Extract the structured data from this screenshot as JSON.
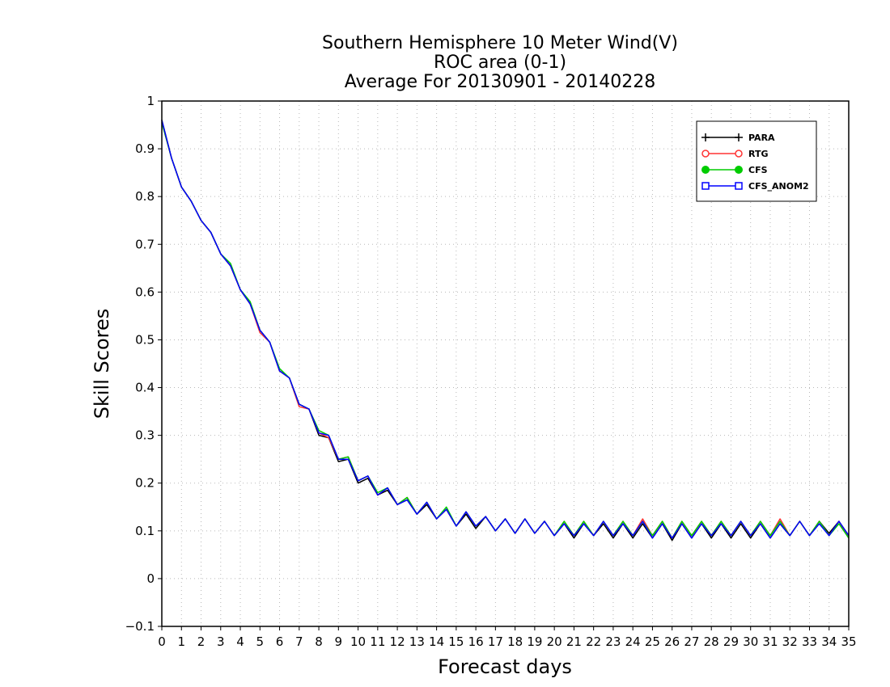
{
  "chart_data": {
    "type": "line",
    "title_lines": [
      "Southern Hemisphere 10 Meter Wind(V)",
      "ROC area (0-1)",
      "Average For 20130901 - 20140228"
    ],
    "xlabel": "Forecast days",
    "ylabel": "Skill Scores",
    "xlim": [
      0,
      35
    ],
    "ylim": [
      -0.1,
      1
    ],
    "x_ticks": [
      "0",
      "1",
      "2",
      "3",
      "4",
      "5",
      "6",
      "7",
      "8",
      "9",
      "10",
      "11",
      "12",
      "13",
      "14",
      "15",
      "16",
      "17",
      "18",
      "19",
      "20",
      "21",
      "22",
      "23",
      "24",
      "25",
      "26",
      "27",
      "28",
      "29",
      "30",
      "31",
      "32",
      "33",
      "34",
      "35"
    ],
    "y_ticks": [
      "−0.1",
      "0",
      "0.1",
      "0.2",
      "0.3",
      "0.4",
      "0.5",
      "0.6",
      "0.7",
      "0.8",
      "0.9",
      "1"
    ],
    "grid": true,
    "legend_position": "top-right",
    "x": [
      0,
      0.5,
      1,
      1.5,
      2,
      2.5,
      3,
      3.5,
      4,
      4.5,
      5,
      5.5,
      6,
      6.5,
      7,
      7.5,
      8,
      8.5,
      9,
      9.5,
      10,
      10.5,
      11,
      11.5,
      12,
      12.5,
      13,
      13.5,
      14,
      14.5,
      15,
      15.5,
      16,
      16.5,
      17,
      17.5,
      18,
      18.5,
      19,
      19.5,
      20,
      20.5,
      21,
      21.5,
      22,
      22.5,
      23,
      23.5,
      24,
      24.5,
      25,
      25.5,
      26,
      26.5,
      27,
      27.5,
      28,
      28.5,
      29,
      29.5,
      30,
      30.5,
      31,
      31.5,
      32,
      32.5,
      33,
      33.5,
      34,
      34.5,
      35
    ],
    "series": [
      {
        "name": "PARA",
        "color": "#000000",
        "marker": "plus",
        "values": [
          0.96,
          0.88,
          0.82,
          0.79,
          0.75,
          0.725,
          0.68,
          0.655,
          0.605,
          0.575,
          0.52,
          0.495,
          0.435,
          0.42,
          0.365,
          0.355,
          0.3,
          0.295,
          0.245,
          0.25,
          0.2,
          0.21,
          0.175,
          0.185,
          0.155,
          0.165,
          0.135,
          0.155,
          0.125,
          0.145,
          0.11,
          0.135,
          0.105,
          0.13,
          0.1,
          0.125,
          0.095,
          0.125,
          0.095,
          0.12,
          0.09,
          0.115,
          0.085,
          0.115,
          0.09,
          0.115,
          0.085,
          0.115,
          0.085,
          0.115,
          0.085,
          0.115,
          0.08,
          0.115,
          0.085,
          0.115,
          0.085,
          0.115,
          0.085,
          0.115,
          0.085,
          0.115,
          0.085,
          0.115,
          0.09,
          0.12,
          0.09,
          0.12,
          0.095,
          0.12,
          0.09
        ]
      },
      {
        "name": "RTG",
        "color": "#ff3333",
        "marker": "open-circle",
        "values": [
          0.955,
          0.88,
          0.82,
          0.79,
          0.75,
          0.725,
          0.68,
          0.655,
          0.605,
          0.575,
          0.515,
          0.495,
          0.435,
          0.42,
          0.36,
          0.355,
          0.305,
          0.295,
          0.25,
          0.255,
          0.205,
          0.215,
          0.175,
          0.19,
          0.155,
          0.17,
          0.135,
          0.16,
          0.125,
          0.145,
          0.11,
          0.14,
          0.11,
          0.13,
          0.1,
          0.125,
          0.095,
          0.125,
          0.095,
          0.12,
          0.09,
          0.12,
          0.09,
          0.12,
          0.09,
          0.12,
          0.09,
          0.12,
          0.09,
          0.125,
          0.09,
          0.12,
          0.085,
          0.12,
          0.09,
          0.12,
          0.09,
          0.12,
          0.09,
          0.12,
          0.09,
          0.12,
          0.09,
          0.125,
          0.09,
          0.12,
          0.09,
          0.12,
          0.09,
          0.12,
          0.085
        ]
      },
      {
        "name": "CFS",
        "color": "#00cc00",
        "marker": "filled-circle",
        "values": [
          0.955,
          0.88,
          0.82,
          0.79,
          0.75,
          0.725,
          0.68,
          0.66,
          0.605,
          0.58,
          0.52,
          0.495,
          0.44,
          0.42,
          0.365,
          0.355,
          0.31,
          0.3,
          0.25,
          0.255,
          0.205,
          0.215,
          0.18,
          0.19,
          0.155,
          0.17,
          0.135,
          0.16,
          0.125,
          0.15,
          0.11,
          0.14,
          0.11,
          0.13,
          0.1,
          0.125,
          0.095,
          0.125,
          0.095,
          0.12,
          0.09,
          0.12,
          0.09,
          0.12,
          0.09,
          0.12,
          0.09,
          0.12,
          0.09,
          0.12,
          0.09,
          0.12,
          0.085,
          0.12,
          0.09,
          0.12,
          0.09,
          0.12,
          0.09,
          0.12,
          0.09,
          0.12,
          0.09,
          0.12,
          0.09,
          0.12,
          0.09,
          0.12,
          0.09,
          0.115,
          0.085
        ]
      },
      {
        "name": "CFS_ANOM2",
        "color": "#0000ff",
        "marker": "open-square",
        "values": [
          0.96,
          0.88,
          0.82,
          0.79,
          0.75,
          0.725,
          0.68,
          0.655,
          0.605,
          0.575,
          0.52,
          0.495,
          0.435,
          0.42,
          0.365,
          0.355,
          0.305,
          0.3,
          0.25,
          0.25,
          0.205,
          0.215,
          0.175,
          0.19,
          0.155,
          0.165,
          0.135,
          0.16,
          0.125,
          0.145,
          0.11,
          0.14,
          0.11,
          0.13,
          0.1,
          0.125,
          0.095,
          0.125,
          0.095,
          0.12,
          0.09,
          0.115,
          0.09,
          0.115,
          0.09,
          0.12,
          0.09,
          0.115,
          0.09,
          0.12,
          0.085,
          0.115,
          0.085,
          0.115,
          0.085,
          0.115,
          0.09,
          0.115,
          0.09,
          0.12,
          0.09,
          0.115,
          0.085,
          0.115,
          0.09,
          0.12,
          0.09,
          0.115,
          0.09,
          0.12,
          0.09
        ]
      }
    ]
  }
}
